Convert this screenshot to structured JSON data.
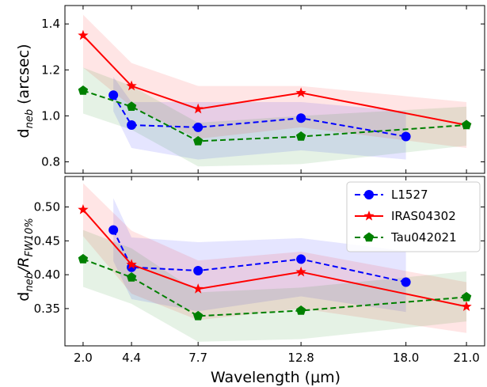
{
  "chart_data": {
    "type": "line",
    "xlabel": "Wavelength (μm)",
    "x_ticks": [
      {
        "value": 2.0,
        "label": "2.0"
      },
      {
        "value": 4.4,
        "label": "4.4"
      },
      {
        "value": 7.7,
        "label": "7.7"
      },
      {
        "value": 12.8,
        "label": "12.8"
      },
      {
        "value": 18.0,
        "label": "18.0"
      },
      {
        "value": 21.0,
        "label": "21.0"
      }
    ],
    "xlim": [
      1.1,
      21.9
    ],
    "legend_placement": "top-right of lower panel",
    "styles": [
      {
        "name": "L1527",
        "color": "#0000ff",
        "marker": "circle",
        "dash": "dashed"
      },
      {
        "name": "IRAS04302",
        "color": "#ff0000",
        "marker": "star",
        "dash": "solid"
      },
      {
        "name": "Tau042021",
        "color": "#008000",
        "marker": "pentagon",
        "dash": "dashed"
      }
    ],
    "panels": [
      {
        "id": "top",
        "ylabel_main": "d",
        "ylabel_sub": "neb",
        "ylabel_tail": " (arcsec)",
        "ylim": [
          0.75,
          1.48
        ],
        "y_ticks": [
          {
            "value": 0.8,
            "label": "0.8"
          },
          {
            "value": 1.0,
            "label": "1.0"
          },
          {
            "value": 1.2,
            "label": "1.2"
          },
          {
            "value": 1.4,
            "label": "1.4"
          }
        ],
        "series": [
          {
            "name": "L1527",
            "x": [
              3.5,
              4.4,
              7.7,
              12.8,
              18.0
            ],
            "y": [
              1.09,
              0.96,
              0.95,
              0.99,
              0.91
            ],
            "upper": [
              1.17,
              1.06,
              1.06,
              1.06,
              1.02
            ],
            "lower": [
              1.02,
              0.86,
              0.81,
              0.85,
              0.81
            ]
          },
          {
            "name": "IRAS04302",
            "x": [
              2.0,
              4.4,
              7.7,
              12.8,
              21.0
            ],
            "y": [
              1.35,
              1.13,
              1.03,
              1.1,
              0.96
            ],
            "upper": [
              1.44,
              1.23,
              1.13,
              1.13,
              1.06
            ],
            "lower": [
              1.21,
              1.04,
              0.9,
              0.95,
              0.86
            ]
          },
          {
            "name": "Tau042021",
            "x": [
              2.0,
              4.4,
              7.7,
              12.8,
              21.0
            ],
            "y": [
              1.11,
              1.04,
              0.89,
              0.91,
              0.96
            ],
            "upper": [
              1.21,
              1.13,
              0.97,
              1.0,
              1.04
            ],
            "lower": [
              1.01,
              0.94,
              0.78,
              0.79,
              0.87
            ]
          }
        ]
      },
      {
        "id": "bottom",
        "ylabel_main": "d",
        "ylabel_sub": "neb",
        "ylabel_tail": "/R",
        "ylabel_sub2": "FW10%",
        "ylim": [
          0.295,
          0.545
        ],
        "y_ticks": [
          {
            "value": 0.35,
            "label": "0.35"
          },
          {
            "value": 0.4,
            "label": "0.40"
          },
          {
            "value": 0.45,
            "label": "0.45"
          },
          {
            "value": 0.5,
            "label": "0.50"
          }
        ],
        "series": [
          {
            "name": "L1527",
            "x": [
              3.5,
              4.4,
              7.7,
              12.8,
              18.0
            ],
            "y": [
              0.466,
              0.411,
              0.406,
              0.423,
              0.389
            ],
            "upper": [
              0.513,
              0.455,
              0.448,
              0.454,
              0.435
            ],
            "lower": [
              0.42,
              0.364,
              0.346,
              0.368,
              0.345
            ]
          },
          {
            "name": "IRAS04302",
            "x": [
              2.0,
              4.4,
              7.7,
              12.8,
              21.0
            ],
            "y": [
              0.496,
              0.415,
              0.379,
              0.404,
              0.353
            ],
            "upper": [
              0.535,
              0.465,
              0.421,
              0.434,
              0.389
            ],
            "lower": [
              0.457,
              0.372,
              0.333,
              0.35,
              0.314
            ]
          },
          {
            "name": "Tau042021",
            "x": [
              2.0,
              4.4,
              7.7,
              12.8,
              21.0
            ],
            "y": [
              0.423,
              0.396,
              0.339,
              0.347,
              0.367
            ],
            "upper": [
              0.466,
              0.439,
              0.374,
              0.381,
              0.405
            ],
            "lower": [
              0.382,
              0.357,
              0.301,
              0.305,
              0.331
            ]
          }
        ]
      }
    ]
  }
}
